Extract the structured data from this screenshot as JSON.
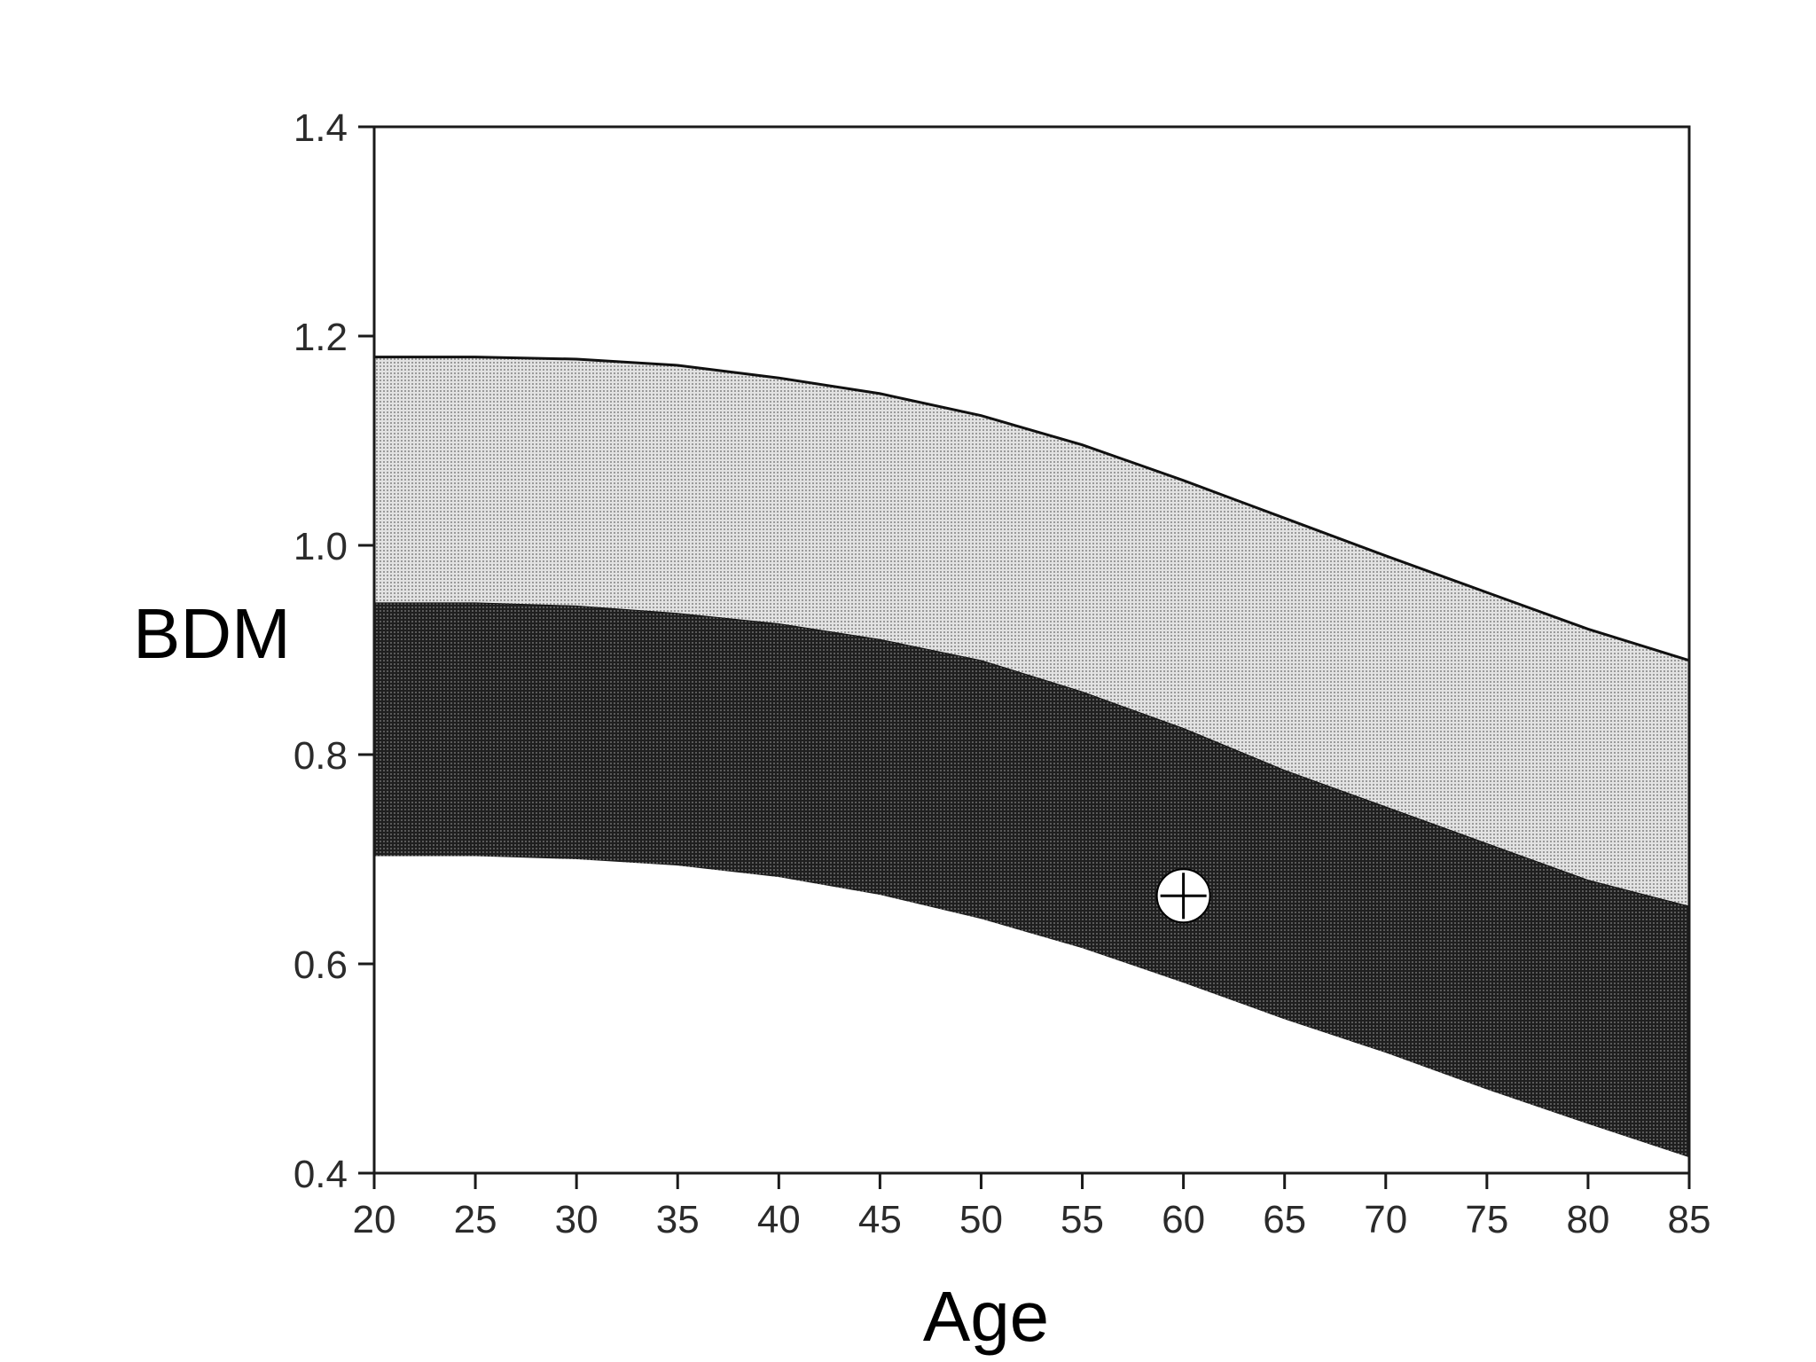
{
  "chart_data": {
    "type": "area",
    "title": "",
    "xlabel": "Age",
    "ylabel": "BDM",
    "xlim": [
      20,
      85
    ],
    "ylim": [
      0.4,
      1.4
    ],
    "x_ticks": [
      20,
      25,
      30,
      35,
      40,
      45,
      50,
      55,
      60,
      65,
      70,
      75,
      80,
      85
    ],
    "y_ticks": [
      0.4,
      0.6,
      0.8,
      1.0,
      1.2,
      1.4
    ],
    "y_tick_labels": [
      "0.4",
      "0.6",
      "0.8",
      "1.0",
      "1.2",
      "1.4"
    ],
    "x": [
      20,
      25,
      30,
      35,
      40,
      45,
      50,
      55,
      60,
      65,
      70,
      75,
      80,
      85
    ],
    "bands": [
      {
        "fill": "#c9c9c9",
        "upper": [
          1.18,
          1.18,
          1.178,
          1.172,
          1.16,
          1.145,
          1.124,
          1.096,
          1.062,
          1.026,
          0.99,
          0.955,
          0.92,
          0.89
        ],
        "lower": [
          0.945,
          0.945,
          0.942,
          0.935,
          0.925,
          0.91,
          0.89,
          0.86,
          0.825,
          0.785,
          0.75,
          0.715,
          0.68,
          0.655
        ]
      },
      {
        "fill": "#2a2a2a",
        "upper": [
          0.945,
          0.945,
          0.942,
          0.935,
          0.925,
          0.91,
          0.89,
          0.86,
          0.825,
          0.785,
          0.75,
          0.715,
          0.68,
          0.655
        ],
        "lower": [
          0.703,
          0.703,
          0.7,
          0.694,
          0.683,
          0.666,
          0.643,
          0.615,
          0.582,
          0.547,
          0.515,
          0.48,
          0.447,
          0.415
        ]
      }
    ],
    "marker": {
      "x": 60,
      "y": 0.665,
      "symbol": "circle-crosshair"
    },
    "colors": {
      "axis": "#1a1a1a",
      "upper_band": "#c9c9c9",
      "lower_band": "#2a2a2a",
      "marker_fill": "#ffffff"
    }
  }
}
